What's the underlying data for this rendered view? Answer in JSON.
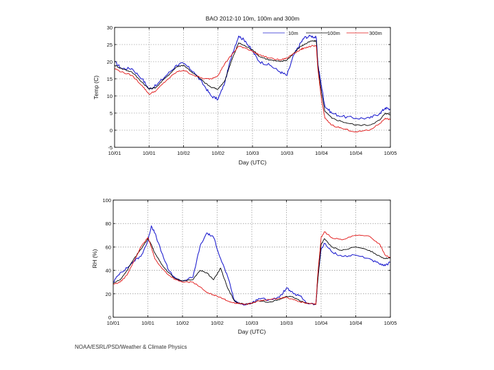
{
  "footer": "NOAA/ESRL/PSD/Weather & Climate Physics",
  "chart_data": [
    {
      "type": "line",
      "title": "BAO 2012-10 10m, 100m and 300m",
      "xlabel": "Day (UTC)",
      "ylabel": "Temp (C)",
      "ylim": [
        -5,
        30
      ],
      "yticks": [
        -5,
        0,
        5,
        10,
        15,
        20,
        25,
        30
      ],
      "ytick_labels": [
        "-5",
        "0",
        "5",
        "10",
        "15",
        "20",
        "25",
        "30"
      ],
      "xlim": [
        0,
        8
      ],
      "xticks": [
        0,
        1,
        2,
        3,
        4,
        5,
        6,
        7,
        8
      ],
      "xtick_labels": [
        "10/01",
        "10/01",
        "10/02",
        "10/02",
        "10/03",
        "10/03",
        "10/04",
        "10/04",
        "10/05"
      ],
      "grid": true,
      "legend_position": "top-right",
      "series": [
        {
          "name": "10m",
          "color": "#1f1fcf",
          "x": [
            0,
            0.2,
            0.5,
            0.8,
            1.0,
            1.2,
            1.5,
            1.8,
            2.0,
            2.3,
            2.6,
            2.8,
            3.0,
            3.2,
            3.4,
            3.6,
            3.8,
            4.0,
            4.2,
            4.5,
            4.8,
            5.0,
            5.2,
            5.4,
            5.5,
            5.7,
            5.85,
            5.9,
            6.0,
            6.1,
            6.3,
            6.6,
            7.0,
            7.4,
            7.7,
            7.85,
            8.0
          ],
          "values": [
            20,
            18,
            18,
            15,
            12,
            13,
            16,
            19,
            19.5,
            17,
            13,
            10,
            9,
            14,
            22,
            27.5,
            26,
            23,
            20,
            19,
            17,
            16,
            22,
            25.5,
            27,
            27.5,
            27,
            19,
            13,
            7,
            5,
            4,
            3.5,
            3.5,
            5,
            6.5,
            6
          ]
        },
        {
          "name": "100m",
          "color": "#000000",
          "x": [
            0,
            0.2,
            0.5,
            0.8,
            1.0,
            1.2,
            1.5,
            1.8,
            2.0,
            2.3,
            2.6,
            2.8,
            3.0,
            3.2,
            3.4,
            3.6,
            3.8,
            4.0,
            4.2,
            4.5,
            4.8,
            5.0,
            5.2,
            5.4,
            5.5,
            5.7,
            5.85,
            5.9,
            6.0,
            6.1,
            6.3,
            6.6,
            7.0,
            7.4,
            7.7,
            7.85,
            8.0
          ],
          "values": [
            19,
            18,
            17,
            14,
            12,
            12.5,
            15.5,
            18.5,
            19,
            16.5,
            14,
            12.5,
            12,
            14.5,
            20.5,
            25.5,
            24.5,
            23.5,
            21.5,
            20.5,
            20,
            20.5,
            22.5,
            24.5,
            25,
            26,
            26,
            18.5,
            11,
            5.5,
            3.5,
            2.5,
            1.5,
            1.5,
            3,
            5,
            4.5
          ]
        },
        {
          "name": "300m",
          "color": "#e01010",
          "x": [
            0,
            0.2,
            0.5,
            0.8,
            1.0,
            1.2,
            1.5,
            1.8,
            2.0,
            2.3,
            2.6,
            2.8,
            3.0,
            3.2,
            3.4,
            3.6,
            3.8,
            4.0,
            4.2,
            4.5,
            4.8,
            5.0,
            5.2,
            5.4,
            5.5,
            5.7,
            5.85,
            5.9,
            6.0,
            6.1,
            6.3,
            6.6,
            7.0,
            7.4,
            7.7,
            7.85,
            8.0
          ],
          "values": [
            18,
            17,
            16,
            13,
            10.5,
            11.5,
            14.5,
            17,
            17.5,
            16,
            15,
            15,
            16,
            19.5,
            22,
            24.5,
            24,
            23,
            22,
            21,
            20.5,
            21,
            22.5,
            23.5,
            24,
            24.5,
            24.5,
            17.5,
            9,
            3.5,
            1.5,
            0.5,
            -0.5,
            0,
            2,
            3.5,
            3
          ]
        }
      ]
    },
    {
      "type": "line",
      "title": "",
      "xlabel": "Day (UTC)",
      "ylabel": "RH (%)",
      "ylim": [
        0,
        100
      ],
      "yticks": [
        0,
        20,
        40,
        60,
        80,
        100
      ],
      "ytick_labels": [
        "0",
        "20",
        "40",
        "60",
        "80",
        "100"
      ],
      "xlim": [
        0,
        8
      ],
      "xticks": [
        0,
        1,
        2,
        3,
        4,
        5,
        6,
        7,
        8
      ],
      "xtick_labels": [
        "10/01",
        "10/01",
        "10/02",
        "10/02",
        "10/03",
        "10/03",
        "10/04",
        "10/04",
        "10/05"
      ],
      "grid": true,
      "series": [
        {
          "name": "10m",
          "color": "#1f1fcf",
          "x": [
            0,
            0.2,
            0.4,
            0.6,
            0.8,
            1.0,
            1.1,
            1.2,
            1.4,
            1.6,
            1.8,
            2.0,
            2.3,
            2.5,
            2.7,
            2.9,
            3.1,
            3.3,
            3.5,
            3.6,
            3.8,
            4.0,
            4.2,
            4.5,
            4.8,
            5.0,
            5.2,
            5.4,
            5.6,
            5.85,
            5.9,
            6.0,
            6.1,
            6.3,
            6.6,
            7.0,
            7.4,
            7.7,
            7.85,
            8.0
          ],
          "values": [
            30,
            38,
            42,
            48,
            52,
            65,
            78,
            72,
            55,
            40,
            33,
            31,
            34,
            60,
            72,
            68,
            50,
            35,
            14,
            12,
            11,
            12,
            16,
            15,
            17,
            25,
            20,
            18,
            12,
            11,
            32,
            58,
            63,
            56,
            52,
            53,
            50,
            45,
            44,
            47
          ]
        },
        {
          "name": "100m",
          "color": "#000000",
          "x": [
            0,
            0.2,
            0.4,
            0.6,
            0.8,
            1.0,
            1.1,
            1.2,
            1.4,
            1.6,
            1.8,
            2.0,
            2.3,
            2.5,
            2.7,
            2.9,
            3.1,
            3.3,
            3.5,
            3.6,
            3.8,
            4.0,
            4.2,
            4.5,
            4.8,
            5.0,
            5.2,
            5.4,
            5.6,
            5.85,
            5.9,
            6.0,
            6.1,
            6.3,
            6.6,
            7.0,
            7.4,
            7.7,
            7.85,
            8.0
          ],
          "values": [
            29,
            32,
            40,
            50,
            58,
            67,
            62,
            55,
            45,
            38,
            33,
            31,
            32,
            40,
            38,
            32,
            42,
            25,
            14,
            12,
            11,
            12,
            14,
            13,
            15,
            18,
            17,
            14,
            12,
            11,
            30,
            62,
            67,
            60,
            57,
            60,
            57,
            52,
            50,
            51
          ]
        },
        {
          "name": "300m",
          "color": "#e01010",
          "x": [
            0,
            0.2,
            0.4,
            0.6,
            0.8,
            1.0,
            1.1,
            1.2,
            1.4,
            1.6,
            1.8,
            2.0,
            2.3,
            2.5,
            2.7,
            2.9,
            3.1,
            3.3,
            3.5,
            3.6,
            3.8,
            4.0,
            4.2,
            4.5,
            4.8,
            5.0,
            5.2,
            5.4,
            5.6,
            5.85,
            5.9,
            6.0,
            6.1,
            6.3,
            6.6,
            7.0,
            7.4,
            7.7,
            7.85,
            8.0
          ],
          "values": [
            28,
            30,
            36,
            48,
            60,
            68,
            60,
            50,
            42,
            36,
            32,
            30,
            30,
            26,
            21,
            19,
            17,
            14,
            12,
            12,
            11,
            12,
            14,
            15,
            16,
            17,
            15,
            13,
            12,
            11,
            35,
            68,
            73,
            68,
            66,
            70,
            69,
            62,
            53,
            51
          ]
        }
      ]
    }
  ]
}
